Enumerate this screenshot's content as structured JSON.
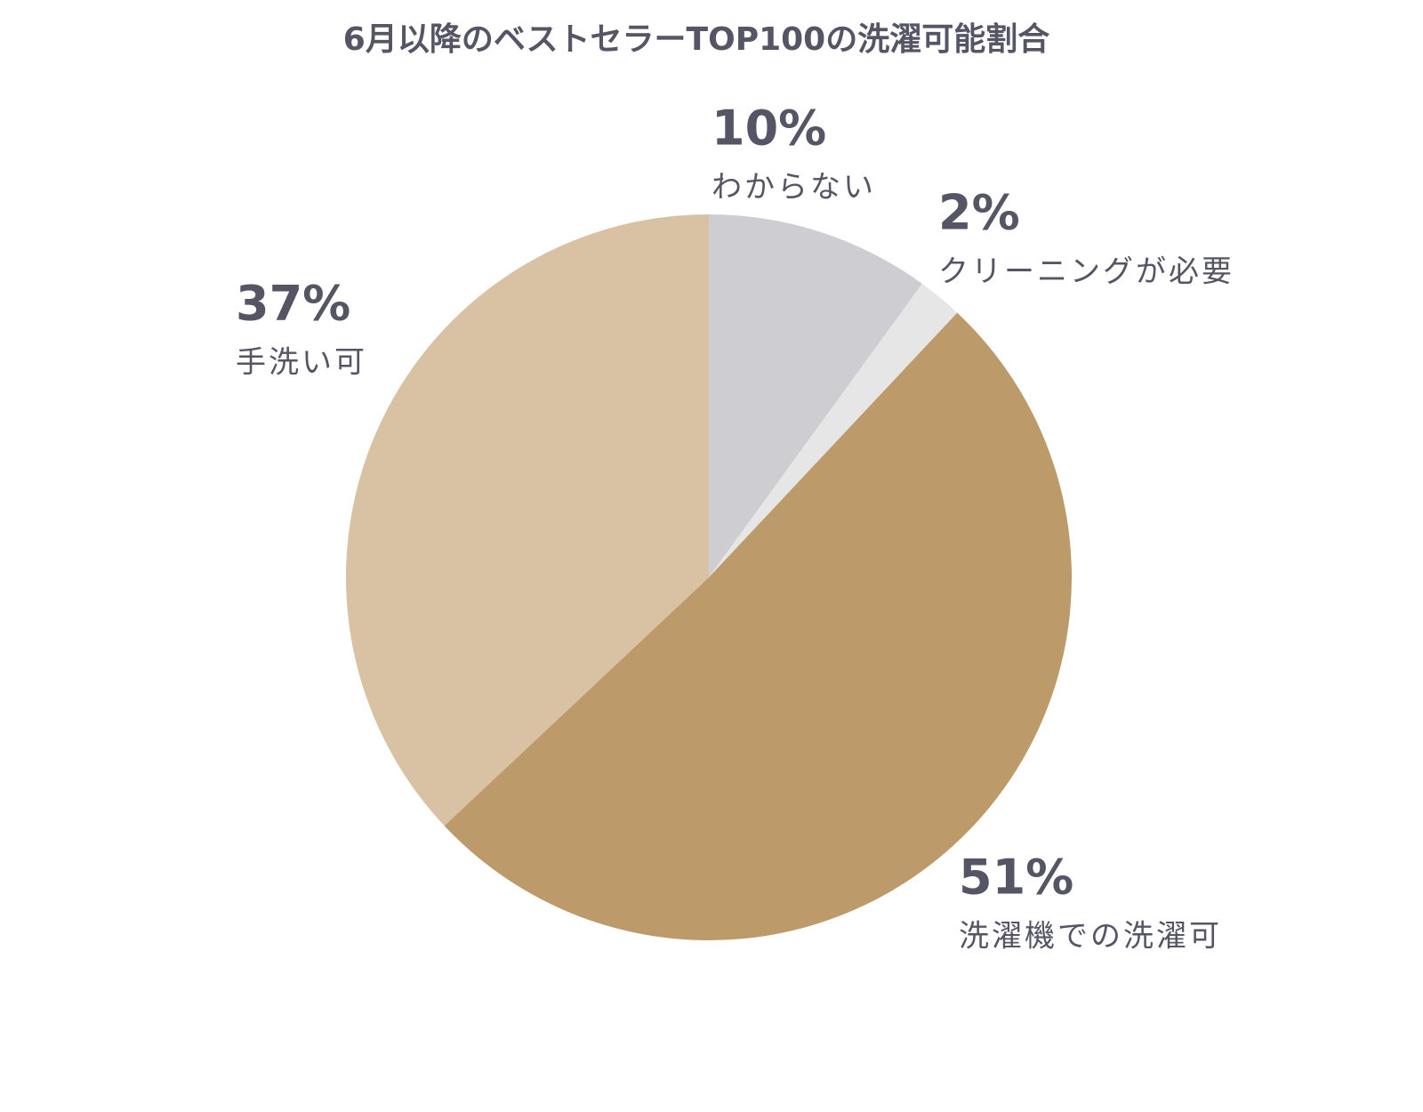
{
  "chart_data": {
    "type": "pie",
    "title": "6月以降のベストセラーTOP100の洗濯可能割合",
    "categories": [
      "わからない",
      "クリーニングが必要",
      "洗濯機での洗濯可",
      "手洗い可"
    ],
    "values": [
      10,
      2,
      51,
      37
    ],
    "value_labels": [
      "10%",
      "2%",
      "51%",
      "37%"
    ],
    "colors": [
      "#cdcdd2",
      "#e6e6e6",
      "#bd9a69",
      "#d9c2a4"
    ]
  }
}
